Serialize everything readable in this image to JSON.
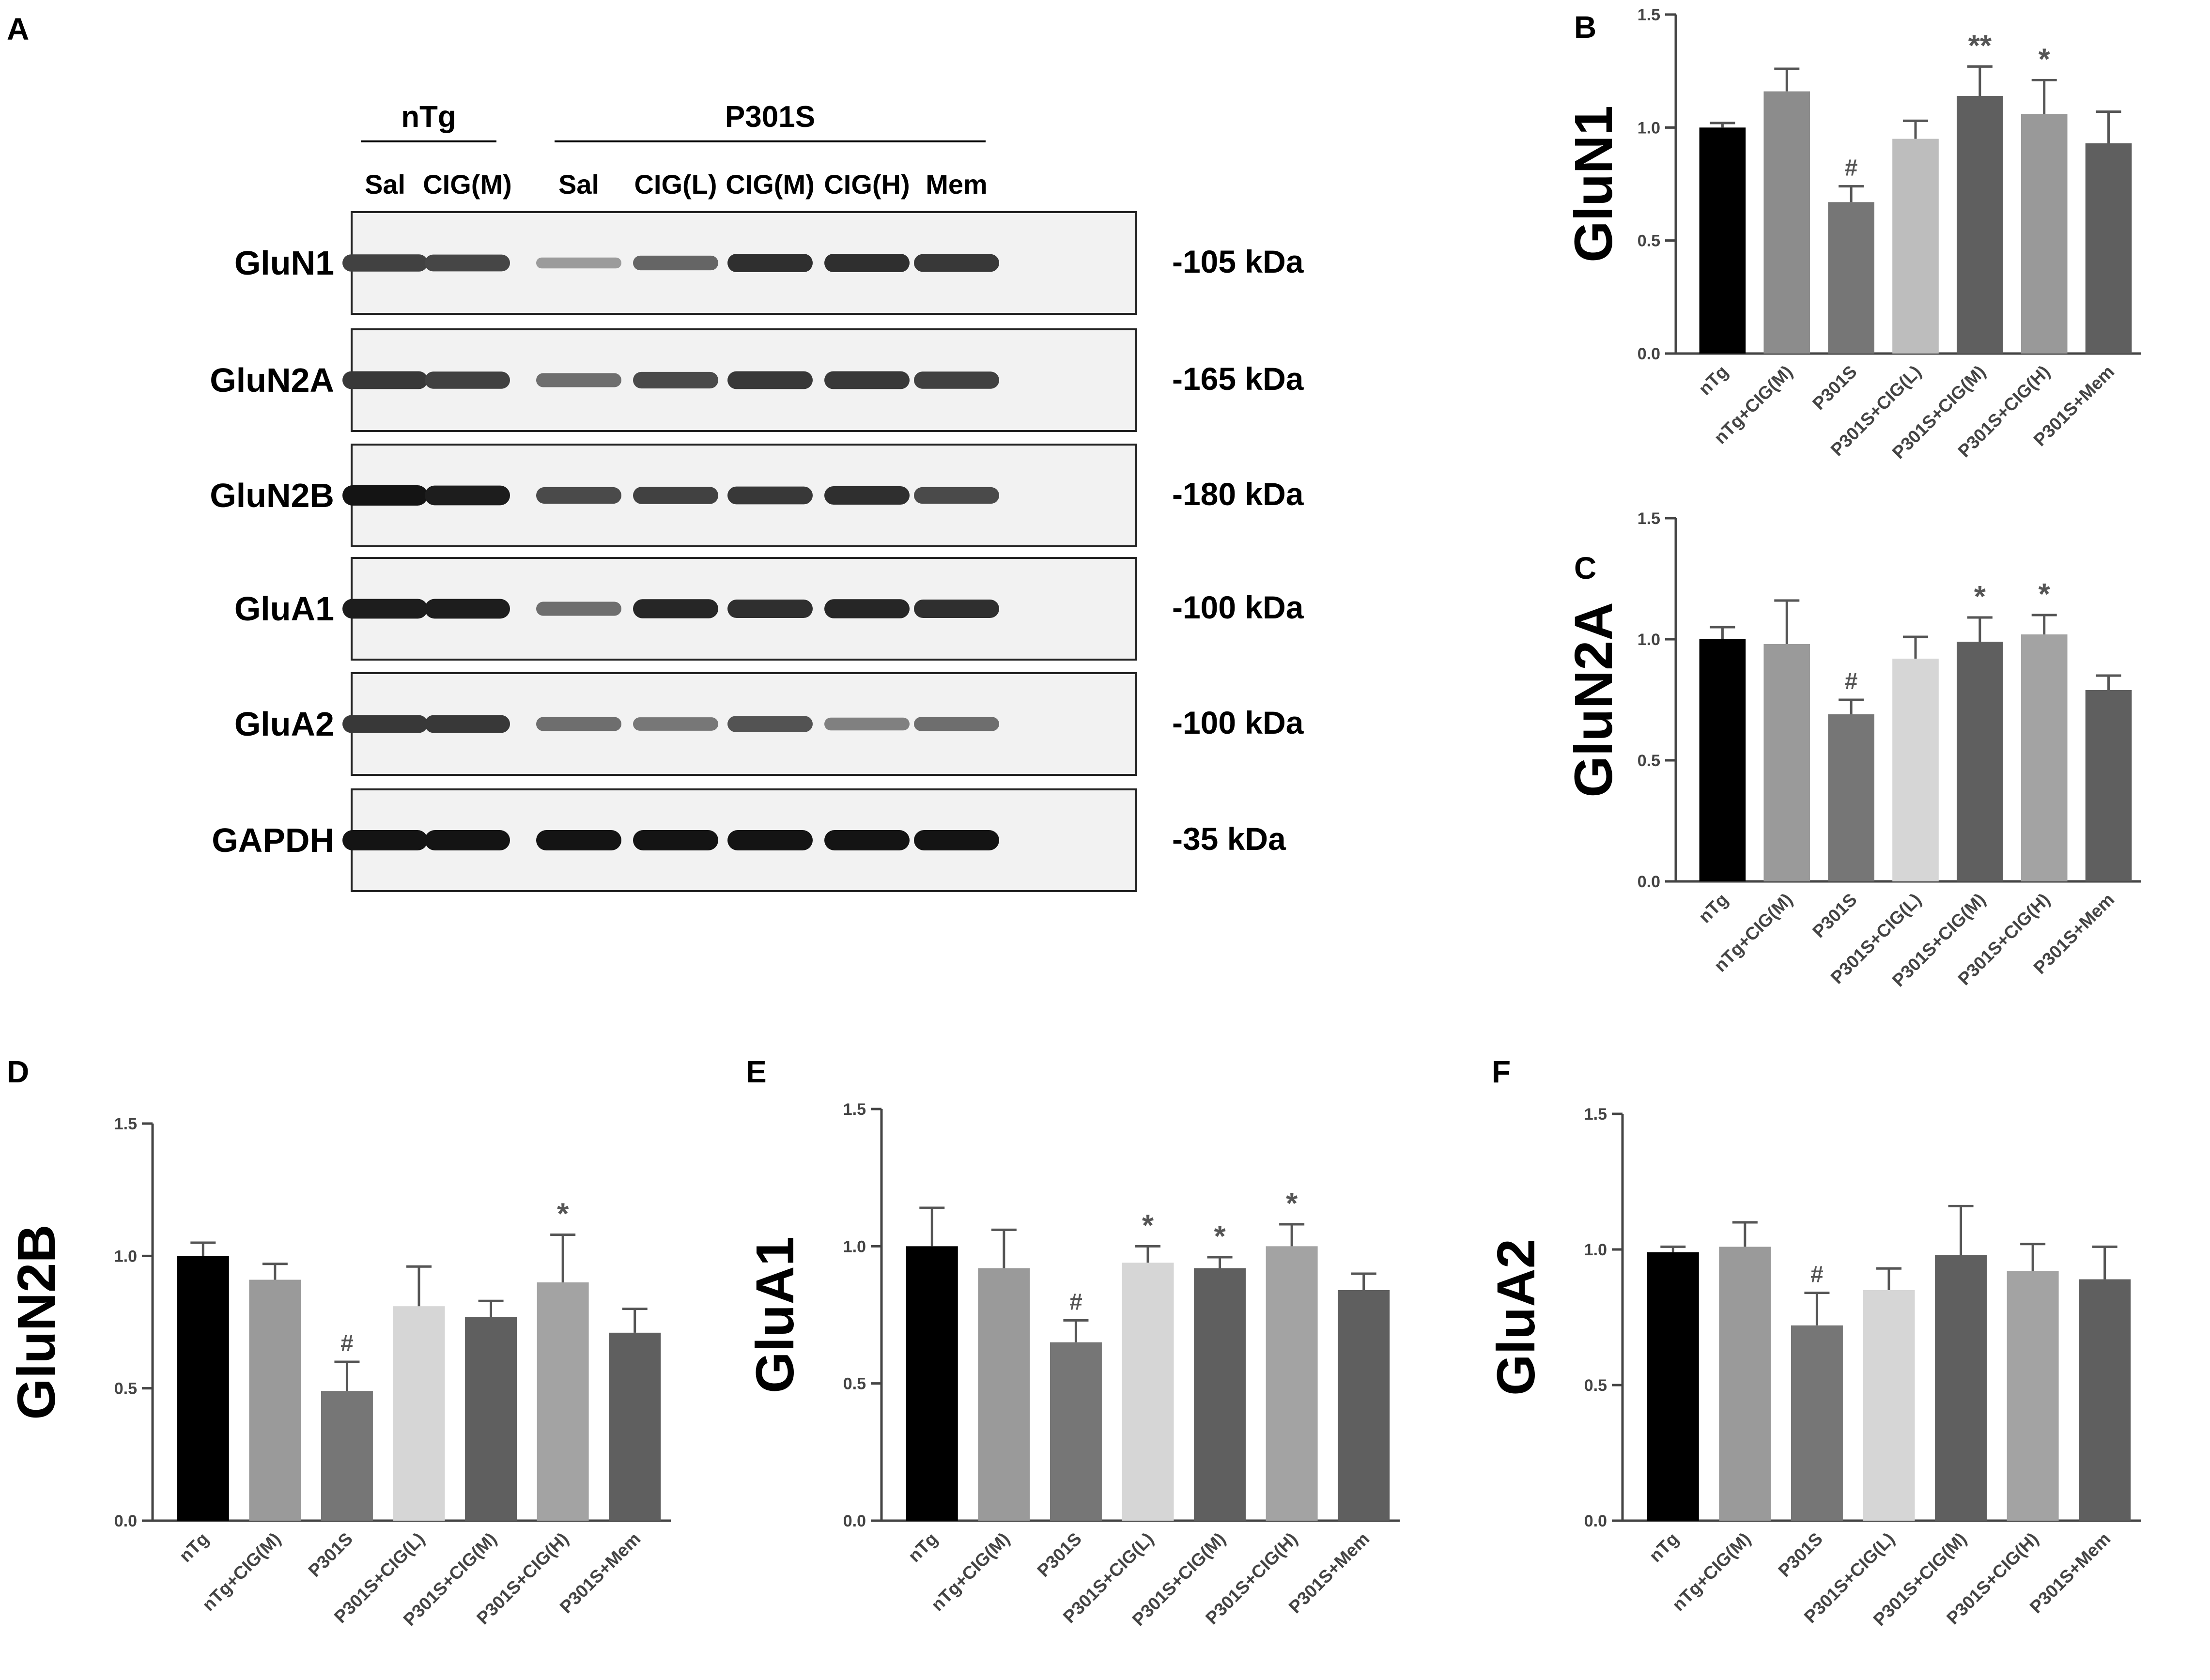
{
  "blot": {
    "panel_letter": "A",
    "groups": [
      {
        "label": "nTg",
        "lanes": [
          0,
          1
        ]
      },
      {
        "label": "P301S",
        "lanes": [
          2,
          6
        ]
      }
    ],
    "lanes": [
      "Sal",
      "CIG(M)",
      "Sal",
      "CIG(L)",
      "CIG(M)",
      "CIG(H)",
      "Mem"
    ],
    "rows": [
      {
        "protein": "GluN1",
        "size": "-105 kDa",
        "intensity": [
          0.75,
          0.72,
          0.25,
          0.55,
          0.85,
          0.85,
          0.8
        ]
      },
      {
        "protein": "GluN2A",
        "size": "-165 kDa",
        "intensity": [
          0.8,
          0.75,
          0.5,
          0.7,
          0.8,
          0.8,
          0.75
        ]
      },
      {
        "protein": "GluN2B",
        "size": "-180 kDa",
        "intensity": [
          1.0,
          0.95,
          0.7,
          0.75,
          0.8,
          0.85,
          0.7
        ]
      },
      {
        "protein": "GluA1",
        "size": "-100 kDa",
        "intensity": [
          0.95,
          0.95,
          0.5,
          0.9,
          0.85,
          0.9,
          0.85
        ]
      },
      {
        "protein": "GluA2",
        "size": "-100 kDa",
        "intensity": [
          0.8,
          0.8,
          0.5,
          0.45,
          0.65,
          0.4,
          0.5
        ]
      },
      {
        "protein": "GAPDH",
        "size": "-35 kDa",
        "intensity": [
          1.0,
          1.0,
          1.0,
          1.0,
          1.0,
          1.0,
          1.0
        ]
      }
    ]
  },
  "chart_data": [
    {
      "panel": "B",
      "type": "bar",
      "ylabel": "GluN1",
      "ylim": [
        0,
        1.5
      ],
      "yticks": [
        "0.0",
        "0.5",
        "1.0",
        "1.5"
      ],
      "categories": [
        "nTg",
        "nTg+CIG(M)",
        "P301S",
        "P301S+CIG(L)",
        "P301S+CIG(M)",
        "P301S+CIG(H)",
        "P301S+Mem"
      ],
      "values": [
        1.0,
        1.16,
        0.67,
        0.95,
        1.14,
        1.06,
        0.93
      ],
      "errors": [
        0.02,
        0.1,
        0.07,
        0.08,
        0.13,
        0.15,
        0.14
      ],
      "significance": [
        "",
        "",
        "#",
        "",
        "**",
        "*",
        ""
      ],
      "colors": [
        "#000000",
        "#8c8c8c",
        "#767676",
        "#bdbdbd",
        "#5f5f5f",
        "#999999",
        "#5f5f5f"
      ]
    },
    {
      "panel": "C",
      "type": "bar",
      "ylabel": "GluN2A",
      "ylim": [
        0,
        1.5
      ],
      "yticks": [
        "0.0",
        "0.5",
        "1.0",
        "1.5"
      ],
      "categories": [
        "nTg",
        "nTg+CIG(M)",
        "P301S",
        "P301S+CIG(L)",
        "P301S+CIG(M)",
        "P301S+CIG(H)",
        "P301S+Mem"
      ],
      "values": [
        1.0,
        0.98,
        0.69,
        0.92,
        0.99,
        1.02,
        0.79
      ],
      "errors": [
        0.05,
        0.18,
        0.06,
        0.09,
        0.1,
        0.08,
        0.06
      ],
      "significance": [
        "",
        "",
        "#",
        "",
        "*",
        "*",
        ""
      ],
      "colors": [
        "#000000",
        "#9a9a9a",
        "#767676",
        "#d6d6d6",
        "#5f5f5f",
        "#a3a3a3",
        "#5f5f5f"
      ]
    },
    {
      "panel": "D",
      "type": "bar",
      "ylabel": "GluN2B",
      "ylim": [
        0,
        1.5
      ],
      "yticks": [
        "0.0",
        "0.5",
        "1.0",
        "1.5"
      ],
      "categories": [
        "nTg",
        "nTg+CIG(M)",
        "P301S",
        "P301S+CIG(L)",
        "P301S+CIG(M)",
        "P301S+CIG(H)",
        "P301S+Mem"
      ],
      "values": [
        1.0,
        0.91,
        0.49,
        0.81,
        0.77,
        0.9,
        0.71
      ],
      "errors": [
        0.05,
        0.06,
        0.11,
        0.15,
        0.06,
        0.18,
        0.09
      ],
      "significance": [
        "",
        "",
        "#",
        "",
        "",
        "*",
        ""
      ],
      "colors": [
        "#000000",
        "#9a9a9a",
        "#767676",
        "#d6d6d6",
        "#5f5f5f",
        "#a3a3a3",
        "#5f5f5f"
      ]
    },
    {
      "panel": "E",
      "type": "bar",
      "ylabel": "GluA1",
      "ylim": [
        0,
        1.5
      ],
      "yticks": [
        "0.0",
        "0.5",
        "1.0",
        "1.5"
      ],
      "categories": [
        "nTg",
        "nTg+CIG(M)",
        "P301S",
        "P301S+CIG(L)",
        "P301S+CIG(M)",
        "P301S+CIG(H)",
        "P301S+Mem"
      ],
      "values": [
        1.0,
        0.92,
        0.65,
        0.94,
        0.92,
        1.0,
        0.84
      ],
      "errors": [
        0.14,
        0.14,
        0.08,
        0.06,
        0.04,
        0.08,
        0.06
      ],
      "significance": [
        "",
        "",
        "#",
        "*",
        "*",
        "*",
        ""
      ],
      "colors": [
        "#000000",
        "#9a9a9a",
        "#767676",
        "#d6d6d6",
        "#5f5f5f",
        "#a3a3a3",
        "#5f5f5f"
      ]
    },
    {
      "panel": "F",
      "type": "bar",
      "ylabel": "GluA2",
      "ylim": [
        0,
        1.5
      ],
      "yticks": [
        "0.0",
        "0.5",
        "1.0",
        "1.5"
      ],
      "categories": [
        "nTg",
        "nTg+CIG(M)",
        "P301S",
        "P301S+CIG(L)",
        "P301S+CIG(M)",
        "P301S+CIG(H)",
        "P301S+Mem"
      ],
      "values": [
        0.99,
        1.01,
        0.72,
        0.85,
        0.98,
        0.92,
        0.89
      ],
      "errors": [
        0.02,
        0.09,
        0.12,
        0.08,
        0.18,
        0.1,
        0.12
      ],
      "significance": [
        "",
        "",
        "#",
        "",
        "",
        "",
        ""
      ],
      "colors": [
        "#000000",
        "#9a9a9a",
        "#767676",
        "#d6d6d6",
        "#5f5f5f",
        "#a3a3a3",
        "#5f5f5f"
      ]
    }
  ]
}
